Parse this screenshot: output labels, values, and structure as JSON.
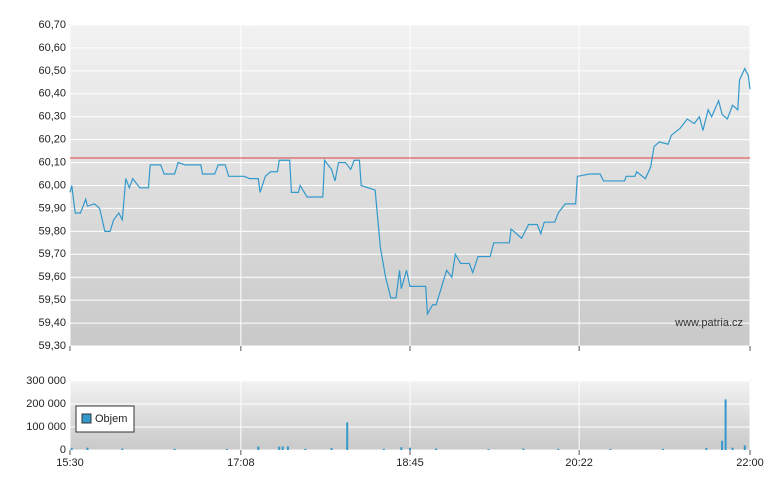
{
  "chart_data": [
    {
      "type": "line",
      "watermark": "www.patria.cz",
      "xlim": [
        "15:30",
        "22:00"
      ],
      "ylim": [
        59.3,
        60.7
      ],
      "yticks": [
        {
          "value": 59.3,
          "label": "59,30"
        },
        {
          "value": 59.4,
          "label": "59,40"
        },
        {
          "value": 59.5,
          "label": "59,50"
        },
        {
          "value": 59.6,
          "label": "59,60"
        },
        {
          "value": 59.7,
          "label": "59,70"
        },
        {
          "value": 59.8,
          "label": "59,80"
        },
        {
          "value": 59.9,
          "label": "59,90"
        },
        {
          "value": 60.0,
          "label": "60,00"
        },
        {
          "value": 60.1,
          "label": "60,10"
        },
        {
          "value": 60.2,
          "label": "60,20"
        },
        {
          "value": 60.3,
          "label": "60,30"
        },
        {
          "value": 60.4,
          "label": "60,40"
        },
        {
          "value": 60.5,
          "label": "60,50"
        },
        {
          "value": 60.6,
          "label": "60,60"
        },
        {
          "value": 60.7,
          "label": "60,70"
        }
      ],
      "grid": true,
      "reference_line": {
        "value": 60.12,
        "color": "#e06060"
      },
      "x": [
        "15:30",
        "15:31",
        "15:33",
        "15:36",
        "15:39",
        "15:40",
        "15:44",
        "15:47",
        "15:50",
        "15:53",
        "15:55",
        "15:58",
        "16:00",
        "16:02",
        "16:04",
        "16:06",
        "16:10",
        "16:15",
        "16:16",
        "16:22",
        "16:24",
        "16:30",
        "16:32",
        "16:36",
        "16:45",
        "16:46",
        "16:53",
        "16:55",
        "16:59",
        "17:01",
        "17:10",
        "17:13",
        "17:18",
        "17:19",
        "17:22",
        "17:25",
        "17:29",
        "17:30",
        "17:36",
        "17:37",
        "17:41",
        "17:42",
        "17:46",
        "17:55",
        "17:56",
        "18:00",
        "18:02",
        "18:04",
        "18:08",
        "18:11",
        "18:13",
        "18:16",
        "18:17",
        "18:25",
        "18:28",
        "18:31",
        "18:34",
        "18:37",
        "18:39",
        "18:40",
        "18:43",
        "18:45",
        "18:54",
        "18:55",
        "18:58",
        "19:00",
        "19:02",
        "19:06",
        "19:09",
        "19:11",
        "19:14",
        "19:19",
        "19:21",
        "19:24",
        "19:31",
        "19:33",
        "19:42",
        "19:43",
        "19:49",
        "19:53",
        "19:58",
        "20:00",
        "20:02",
        "20:08",
        "20:10",
        "20:14",
        "20:20",
        "20:21",
        "20:28",
        "20:34",
        "20:36",
        "20:48",
        "20:49",
        "20:54",
        "20:55",
        "21:00",
        "21:03",
        "21:05",
        "21:08",
        "21:13",
        "21:15",
        "21:20",
        "21:24",
        "21:28",
        "21:31",
        "21:33",
        "21:36",
        "21:38",
        "21:42",
        "21:44",
        "21:47",
        "21:50",
        "21:53",
        "21:54",
        "21:57",
        "21:59",
        "22:00"
      ],
      "series": [
        {
          "color": "#3399cc",
          "values": [
            59.97,
            60.0,
            59.88,
            59.88,
            59.94,
            59.91,
            59.92,
            59.9,
            59.8,
            59.8,
            59.85,
            59.88,
            59.85,
            60.03,
            59.99,
            60.03,
            59.99,
            59.99,
            60.09,
            60.09,
            60.05,
            60.05,
            60.1,
            60.09,
            60.09,
            60.05,
            60.05,
            60.09,
            60.09,
            60.04,
            60.04,
            60.03,
            60.03,
            59.97,
            60.04,
            60.06,
            60.06,
            60.11,
            60.11,
            59.97,
            59.97,
            60.0,
            59.95,
            59.95,
            60.11,
            60.07,
            60.02,
            60.1,
            60.1,
            60.07,
            60.11,
            60.11,
            60.0,
            59.98,
            59.73,
            59.6,
            59.51,
            59.51,
            59.63,
            59.55,
            59.63,
            59.56,
            59.56,
            59.44,
            59.48,
            59.48,
            59.53,
            59.63,
            59.6,
            59.7,
            59.66,
            59.66,
            59.62,
            59.69,
            59.69,
            59.75,
            59.75,
            59.81,
            59.77,
            59.83,
            59.83,
            59.79,
            59.84,
            59.84,
            59.88,
            59.92,
            59.92,
            60.04,
            60.05,
            60.05,
            60.02,
            60.02,
            60.04,
            60.04,
            60.06,
            60.03,
            60.08,
            60.17,
            60.19,
            60.18,
            60.22,
            60.25,
            60.29,
            60.27,
            60.3,
            60.24,
            60.33,
            60.3,
            60.37,
            60.31,
            60.29,
            60.35,
            60.33,
            60.46,
            60.51,
            60.48,
            60.42
          ]
        }
      ]
    },
    {
      "type": "bar",
      "xlim": [
        "15:30",
        "22:00"
      ],
      "xticks": [
        "15:30",
        "17:08",
        "18:45",
        "20:22",
        "22:00"
      ],
      "ylim": [
        0,
        300000
      ],
      "yticks": [
        0,
        {
          "value": 100000,
          "label": "100 000"
        },
        {
          "value": 200000,
          "label": "200 000"
        },
        {
          "value": 300000,
          "label": "300 000"
        }
      ],
      "grid": true,
      "x": [
        "15:31",
        "15:40",
        "16:00",
        "16:30",
        "17:00",
        "17:18",
        "17:30",
        "17:32",
        "17:35",
        "17:45",
        "18:00",
        "18:09",
        "18:30",
        "18:40",
        "18:45",
        "19:00",
        "19:30",
        "19:50",
        "20:10",
        "20:40",
        "21:10",
        "21:35",
        "21:44",
        "21:46",
        "21:50",
        "21:57"
      ],
      "series": [
        {
          "name": "Objem",
          "color": "#3399cc",
          "values": [
            8000,
            10000,
            6000,
            5000,
            4000,
            15000,
            15000,
            15000,
            15000,
            5000,
            8000,
            120000,
            5000,
            12000,
            10000,
            6000,
            4000,
            6000,
            5000,
            4000,
            5000,
            8000,
            40000,
            220000,
            10000,
            20000
          ]
        }
      ]
    }
  ]
}
